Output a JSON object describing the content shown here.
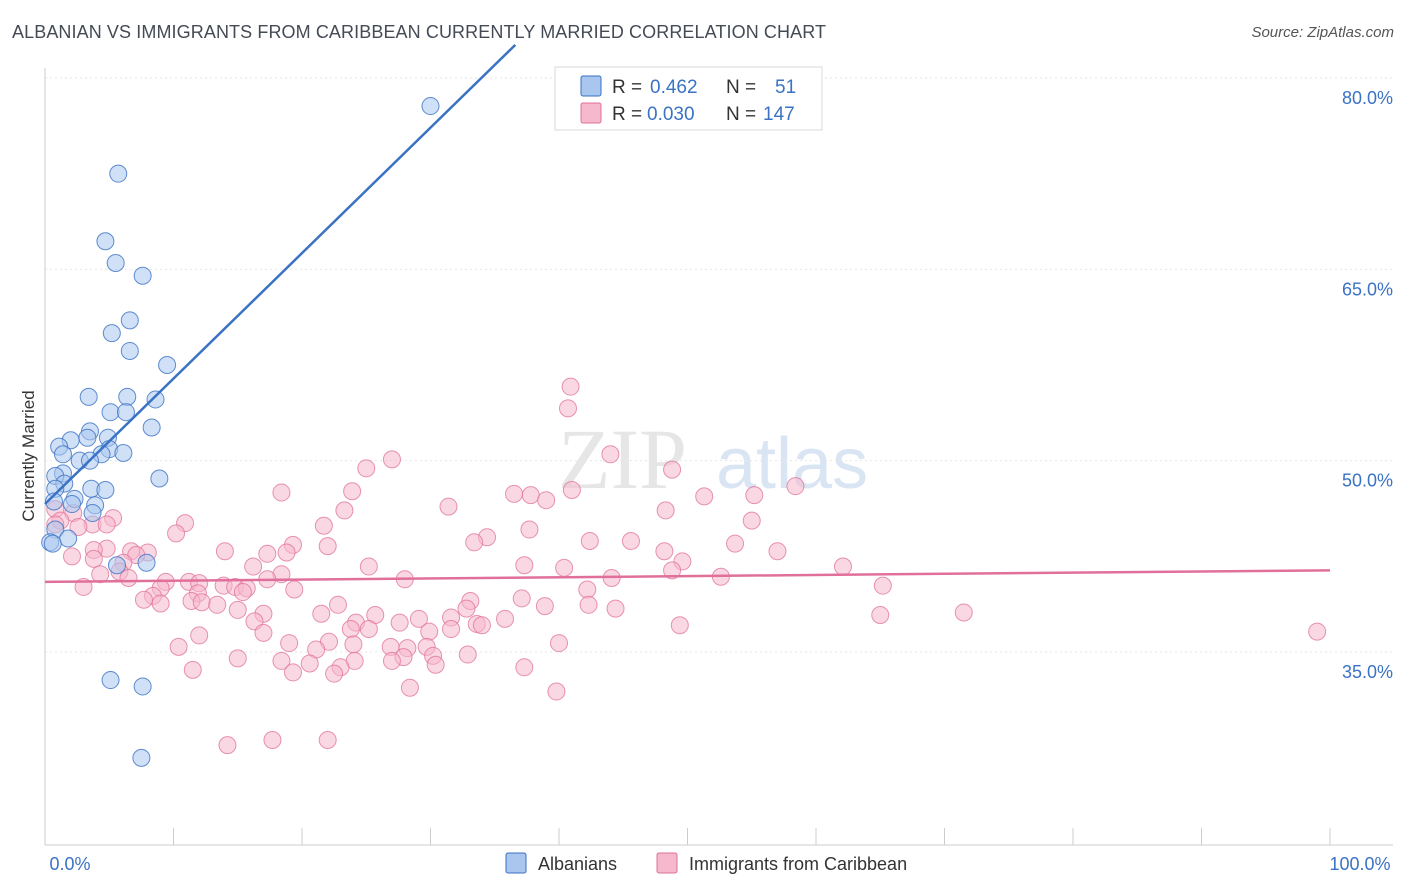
{
  "header": {
    "title": "ALBANIAN VS IMMIGRANTS FROM CARIBBEAN CURRENTLY MARRIED CORRELATION CHART",
    "source": "Source: ZipAtlas.com"
  },
  "watermark": {
    "zip": "ZIP",
    "atlas": "atlas"
  },
  "legend": {
    "r_label": "R =",
    "n_label": "N =",
    "series1": {
      "r": "0.462",
      "n": "51"
    },
    "series2": {
      "r": "0.030",
      "n": "147"
    }
  },
  "chart_data": {
    "type": "scatter",
    "title": "ALBANIAN VS IMMIGRANTS FROM CARIBBEAN CURRENTLY MARRIED CORRELATION CHART",
    "xlabel": "",
    "ylabel": "Currently Married",
    "xlim": [
      0,
      100
    ],
    "ylim": [
      20,
      83
    ],
    "x_tick_labels": [
      "0.0%",
      "100.0%"
    ],
    "y_ticks": [
      35,
      50,
      65,
      80
    ],
    "y_tick_labels": [
      "35.0%",
      "50.0%",
      "65.0%",
      "80.0%"
    ],
    "grid": true,
    "colors": {
      "albanians": "#3a72c4",
      "caribbean": "#e0709a",
      "albanians_fill": "#a9c6ee",
      "caribbean_fill": "#f5b8cc"
    },
    "series": [
      {
        "name": "Albanians",
        "r": 0.462,
        "n": 51,
        "trend": {
          "x": [
            0,
            36.6
          ],
          "y": [
            46.6,
            82.6
          ]
        },
        "points": [
          [
            30.0,
            77.8
          ],
          [
            5.7,
            72.5
          ],
          [
            4.7,
            67.2
          ],
          [
            5.5,
            65.5
          ],
          [
            7.6,
            64.5
          ],
          [
            6.6,
            61.0
          ],
          [
            5.2,
            60.0
          ],
          [
            6.6,
            58.6
          ],
          [
            9.5,
            57.5
          ],
          [
            6.4,
            55.0
          ],
          [
            3.4,
            55.0
          ],
          [
            8.6,
            54.8
          ],
          [
            5.1,
            53.8
          ],
          [
            6.3,
            53.8
          ],
          [
            8.3,
            52.6
          ],
          [
            3.5,
            52.3
          ],
          [
            2.0,
            51.6
          ],
          [
            3.3,
            51.8
          ],
          [
            4.9,
            51.8
          ],
          [
            1.1,
            51.1
          ],
          [
            1.4,
            50.5
          ],
          [
            5.0,
            50.9
          ],
          [
            4.4,
            50.5
          ],
          [
            6.1,
            50.6
          ],
          [
            2.7,
            50.0
          ],
          [
            3.5,
            50.0
          ],
          [
            1.4,
            49.0
          ],
          [
            0.8,
            48.8
          ],
          [
            8.9,
            48.6
          ],
          [
            1.5,
            48.2
          ],
          [
            3.6,
            47.8
          ],
          [
            4.7,
            47.7
          ],
          [
            0.8,
            47.8
          ],
          [
            2.3,
            47.0
          ],
          [
            0.7,
            46.8
          ],
          [
            2.1,
            46.6
          ],
          [
            3.9,
            46.5
          ],
          [
            3.7,
            45.9
          ],
          [
            0.8,
            44.6
          ],
          [
            1.8,
            43.9
          ],
          [
            0.4,
            43.6
          ],
          [
            0.6,
            43.5
          ],
          [
            7.9,
            42.0
          ],
          [
            5.6,
            41.8
          ],
          [
            5.1,
            32.8
          ],
          [
            7.6,
            32.3
          ],
          [
            7.5,
            26.7
          ]
        ]
      },
      {
        "name": "Immigrants from Caribbean",
        "r": 0.03,
        "n": 147,
        "trend": {
          "x": [
            0,
            100
          ],
          "y": [
            40.5,
            41.4
          ]
        },
        "points": [
          [
            40.9,
            55.8
          ],
          [
            40.7,
            54.1
          ],
          [
            44.0,
            50.5
          ],
          [
            27.0,
            50.1
          ],
          [
            25.0,
            49.4
          ],
          [
            48.8,
            49.3
          ],
          [
            58.4,
            48.0
          ],
          [
            41.0,
            47.7
          ],
          [
            18.4,
            47.5
          ],
          [
            23.9,
            47.6
          ],
          [
            37.8,
            47.3
          ],
          [
            51.3,
            47.2
          ],
          [
            36.5,
            47.4
          ],
          [
            55.2,
            47.3
          ],
          [
            39.0,
            46.9
          ],
          [
            31.4,
            46.4
          ],
          [
            23.3,
            46.1
          ],
          [
            48.3,
            46.1
          ],
          [
            0.8,
            46.2
          ],
          [
            2.2,
            45.9
          ],
          [
            1.2,
            45.3
          ],
          [
            5.3,
            45.5
          ],
          [
            55.0,
            45.3
          ],
          [
            0.8,
            45.0
          ],
          [
            3.7,
            45.0
          ],
          [
            2.6,
            44.8
          ],
          [
            4.8,
            45.0
          ],
          [
            10.9,
            45.1
          ],
          [
            21.7,
            44.9
          ],
          [
            37.7,
            44.6
          ],
          [
            10.2,
            44.3
          ],
          [
            34.4,
            44.0
          ],
          [
            33.4,
            43.6
          ],
          [
            42.4,
            43.7
          ],
          [
            45.6,
            43.7
          ],
          [
            53.7,
            43.5
          ],
          [
            19.3,
            43.4
          ],
          [
            22.0,
            43.3
          ],
          [
            4.8,
            43.1
          ],
          [
            3.8,
            43.0
          ],
          [
            6.7,
            42.9
          ],
          [
            14.0,
            42.9
          ],
          [
            17.3,
            42.7
          ],
          [
            18.8,
            42.8
          ],
          [
            48.2,
            42.9
          ],
          [
            57.0,
            42.9
          ],
          [
            8.0,
            42.8
          ],
          [
            2.1,
            42.5
          ],
          [
            7.1,
            42.6
          ],
          [
            6.1,
            42.0
          ],
          [
            3.8,
            42.3
          ],
          [
            37.3,
            41.8
          ],
          [
            16.2,
            41.7
          ],
          [
            25.2,
            41.7
          ],
          [
            40.4,
            41.6
          ],
          [
            49.6,
            42.1
          ],
          [
            62.1,
            41.7
          ],
          [
            48.8,
            41.4
          ],
          [
            5.8,
            41.3
          ],
          [
            4.3,
            41.1
          ],
          [
            18.4,
            41.1
          ],
          [
            6.5,
            40.8
          ],
          [
            17.3,
            40.7
          ],
          [
            28.0,
            40.7
          ],
          [
            44.1,
            40.8
          ],
          [
            52.6,
            40.9
          ],
          [
            9.4,
            40.5
          ],
          [
            11.2,
            40.5
          ],
          [
            12.0,
            40.4
          ],
          [
            13.9,
            40.2
          ],
          [
            3.0,
            40.1
          ],
          [
            14.8,
            40.1
          ],
          [
            15.7,
            40.0
          ],
          [
            9.0,
            40.0
          ],
          [
            19.4,
            39.9
          ],
          [
            15.4,
            39.7
          ],
          [
            11.9,
            39.6
          ],
          [
            65.2,
            40.2
          ],
          [
            8.4,
            39.4
          ],
          [
            33.1,
            39.0
          ],
          [
            37.1,
            39.2
          ],
          [
            42.2,
            39.9
          ],
          [
            7.7,
            39.1
          ],
          [
            11.4,
            39.0
          ],
          [
            12.2,
            38.9
          ],
          [
            9.0,
            38.8
          ],
          [
            13.4,
            38.7
          ],
          [
            22.8,
            38.7
          ],
          [
            42.3,
            38.7
          ],
          [
            32.8,
            38.4
          ],
          [
            38.9,
            38.6
          ],
          [
            44.4,
            38.4
          ],
          [
            15.0,
            38.3
          ],
          [
            17.0,
            38.0
          ],
          [
            21.5,
            38.0
          ],
          [
            25.7,
            37.9
          ],
          [
            35.8,
            37.6
          ],
          [
            31.6,
            37.7
          ],
          [
            29.1,
            37.6
          ],
          [
            71.5,
            38.1
          ],
          [
            65.0,
            37.9
          ],
          [
            16.3,
            37.4
          ],
          [
            24.2,
            37.3
          ],
          [
            27.6,
            37.3
          ],
          [
            33.6,
            37.2
          ],
          [
            34.0,
            37.1
          ],
          [
            23.8,
            36.8
          ],
          [
            25.2,
            36.8
          ],
          [
            31.6,
            36.8
          ],
          [
            29.9,
            36.6
          ],
          [
            49.4,
            37.1
          ],
          [
            12.0,
            36.3
          ],
          [
            17.0,
            36.5
          ],
          [
            19.0,
            35.7
          ],
          [
            22.1,
            35.8
          ],
          [
            10.4,
            35.4
          ],
          [
            40.0,
            35.7
          ],
          [
            24.0,
            35.6
          ],
          [
            29.7,
            35.4
          ],
          [
            26.9,
            35.4
          ],
          [
            21.1,
            35.2
          ],
          [
            28.2,
            35.3
          ],
          [
            30.2,
            34.7
          ],
          [
            32.9,
            34.8
          ],
          [
            27.9,
            34.6
          ],
          [
            27.0,
            34.3
          ],
          [
            24.1,
            34.3
          ],
          [
            18.4,
            34.3
          ],
          [
            15.0,
            34.5
          ],
          [
            30.4,
            34.0
          ],
          [
            20.6,
            34.1
          ],
          [
            23.0,
            33.8
          ],
          [
            37.3,
            33.8
          ],
          [
            11.5,
            33.6
          ],
          [
            19.3,
            33.4
          ],
          [
            22.5,
            33.3
          ],
          [
            28.4,
            32.2
          ],
          [
            39.8,
            31.9
          ],
          [
            99.0,
            36.6
          ],
          [
            14.2,
            27.7
          ],
          [
            17.7,
            28.1
          ],
          [
            22.0,
            28.1
          ]
        ]
      }
    ]
  },
  "bottom_legend": {
    "item1": "Albanians",
    "item2": "Immigrants from Caribbean"
  }
}
